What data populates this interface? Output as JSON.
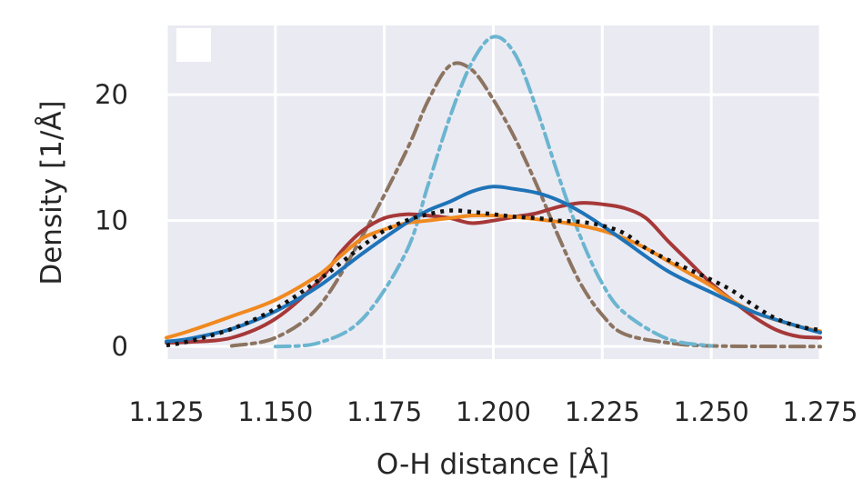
{
  "chart_data": {
    "type": "line",
    "title": "",
    "xlabel": "O-H distance [Å]",
    "ylabel": "Density [1/Å]",
    "xlim": [
      1.125,
      1.275
    ],
    "ylim": [
      -1,
      25.5
    ],
    "xticks": [
      1.125,
      1.15,
      1.175,
      1.2,
      1.225,
      1.25,
      1.275
    ],
    "xtick_labels": [
      "1.125",
      "1.150",
      "1.175",
      "1.200",
      "1.225",
      "1.250",
      "1.275"
    ],
    "yticks": [
      0,
      10,
      20
    ],
    "ytick_labels": [
      "0",
      "10",
      "20"
    ],
    "grid": true,
    "background": "#eaeaf2",
    "legend": "top-left (blank box)",
    "series": [
      {
        "color": "#8c7461",
        "dash": "dashdot",
        "points": [
          [
            1.14,
            0.05
          ],
          [
            1.15,
            0.7
          ],
          [
            1.16,
            3.2
          ],
          [
            1.17,
            8.8
          ],
          [
            1.18,
            15.5
          ],
          [
            1.185,
            19.5
          ],
          [
            1.19,
            22.3
          ],
          [
            1.195,
            22
          ],
          [
            1.2,
            19.6
          ],
          [
            1.205,
            16.5
          ],
          [
            1.21,
            12.8
          ],
          [
            1.215,
            8.7
          ],
          [
            1.22,
            5
          ],
          [
            1.225,
            2.5
          ],
          [
            1.23,
            1
          ],
          [
            1.24,
            0.3
          ],
          [
            1.25,
            0.05
          ],
          [
            1.275,
            0
          ]
        ]
      },
      {
        "color": "#6bb5d0",
        "dash": "dashdot",
        "points": [
          [
            1.15,
            0
          ],
          [
            1.16,
            0.3
          ],
          [
            1.17,
            2.2
          ],
          [
            1.18,
            7.5
          ],
          [
            1.185,
            12.8
          ],
          [
            1.19,
            18.2
          ],
          [
            1.195,
            22.5
          ],
          [
            1.2,
            24.6
          ],
          [
            1.205,
            23.2
          ],
          [
            1.21,
            18.8
          ],
          [
            1.215,
            13.5
          ],
          [
            1.22,
            8.7
          ],
          [
            1.225,
            5
          ],
          [
            1.23,
            2.7
          ],
          [
            1.24,
            0.6
          ],
          [
            1.25,
            0.05
          ]
        ]
      },
      {
        "color": "#a63838",
        "dash": "solid",
        "points": [
          [
            1.125,
            0.3
          ],
          [
            1.13,
            0.35
          ],
          [
            1.14,
            0.7
          ],
          [
            1.15,
            2.2
          ],
          [
            1.16,
            5.2
          ],
          [
            1.165,
            7.5
          ],
          [
            1.17,
            9.2
          ],
          [
            1.175,
            10.2
          ],
          [
            1.18,
            10.5
          ],
          [
            1.185,
            10.4
          ],
          [
            1.19,
            10.2
          ],
          [
            1.195,
            9.8
          ],
          [
            1.2,
            10
          ],
          [
            1.205,
            10.3
          ],
          [
            1.21,
            10.6
          ],
          [
            1.215,
            11.1
          ],
          [
            1.22,
            11.4
          ],
          [
            1.225,
            11.3
          ],
          [
            1.23,
            11
          ],
          [
            1.235,
            10.2
          ],
          [
            1.24,
            8.4
          ],
          [
            1.245,
            6.7
          ],
          [
            1.25,
            5
          ],
          [
            1.255,
            3.6
          ],
          [
            1.26,
            2.3
          ],
          [
            1.265,
            1.3
          ],
          [
            1.27,
            0.8
          ],
          [
            1.275,
            0.7
          ]
        ]
      },
      {
        "color": "#f0891f",
        "dash": "solid",
        "points": [
          [
            1.125,
            0.7
          ],
          [
            1.13,
            1.2
          ],
          [
            1.14,
            2.4
          ],
          [
            1.15,
            3.7
          ],
          [
            1.16,
            5.7
          ],
          [
            1.165,
            7.2
          ],
          [
            1.17,
            8.6
          ],
          [
            1.175,
            9.3
          ],
          [
            1.18,
            9.8
          ],
          [
            1.185,
            10
          ],
          [
            1.19,
            10.2
          ],
          [
            1.195,
            10.4
          ],
          [
            1.2,
            10.4
          ],
          [
            1.205,
            10.3
          ],
          [
            1.21,
            10.1
          ],
          [
            1.215,
            9.9
          ],
          [
            1.22,
            9.6
          ],
          [
            1.225,
            9.2
          ],
          [
            1.23,
            8.6
          ],
          [
            1.235,
            7.8
          ],
          [
            1.24,
            6.8
          ],
          [
            1.245,
            5.8
          ],
          [
            1.25,
            4.8
          ],
          [
            1.255,
            3.6
          ],
          [
            1.26,
            2.7
          ],
          [
            1.265,
            2.1
          ],
          [
            1.27,
            1.6
          ],
          [
            1.275,
            1.2
          ]
        ]
      },
      {
        "color": "#1f73b7",
        "dash": "solid",
        "points": [
          [
            1.125,
            0.4
          ],
          [
            1.13,
            0.6
          ],
          [
            1.14,
            1.4
          ],
          [
            1.15,
            2.8
          ],
          [
            1.16,
            4.8
          ],
          [
            1.17,
            7.4
          ],
          [
            1.18,
            9.8
          ],
          [
            1.185,
            10.8
          ],
          [
            1.19,
            11.5
          ],
          [
            1.195,
            12.3
          ],
          [
            1.2,
            12.7
          ],
          [
            1.205,
            12.5
          ],
          [
            1.21,
            12.2
          ],
          [
            1.215,
            11.6
          ],
          [
            1.22,
            10.7
          ],
          [
            1.225,
            9.6
          ],
          [
            1.23,
            8.4
          ],
          [
            1.24,
            6
          ],
          [
            1.25,
            4.3
          ],
          [
            1.26,
            2.7
          ],
          [
            1.27,
            1.6
          ],
          [
            1.275,
            1.1
          ]
        ]
      },
      {
        "color": "#111111",
        "dash": "dotted",
        "points": [
          [
            1.125,
            0.1
          ],
          [
            1.13,
            0.4
          ],
          [
            1.14,
            1.4
          ],
          [
            1.15,
            3
          ],
          [
            1.16,
            5.3
          ],
          [
            1.17,
            8
          ],
          [
            1.175,
            9.2
          ],
          [
            1.18,
            10
          ],
          [
            1.185,
            10.5
          ],
          [
            1.19,
            10.8
          ],
          [
            1.195,
            10.7
          ],
          [
            1.2,
            10.5
          ],
          [
            1.205,
            10.3
          ],
          [
            1.21,
            10.2
          ],
          [
            1.215,
            10
          ],
          [
            1.22,
            9.9
          ],
          [
            1.225,
            9.6
          ],
          [
            1.23,
            9
          ],
          [
            1.235,
            7.8
          ],
          [
            1.24,
            6.9
          ],
          [
            1.245,
            6.1
          ],
          [
            1.25,
            5.3
          ],
          [
            1.255,
            4.4
          ],
          [
            1.26,
            3.2
          ],
          [
            1.265,
            2.2
          ],
          [
            1.27,
            1.6
          ],
          [
            1.275,
            1.3
          ]
        ]
      }
    ]
  }
}
